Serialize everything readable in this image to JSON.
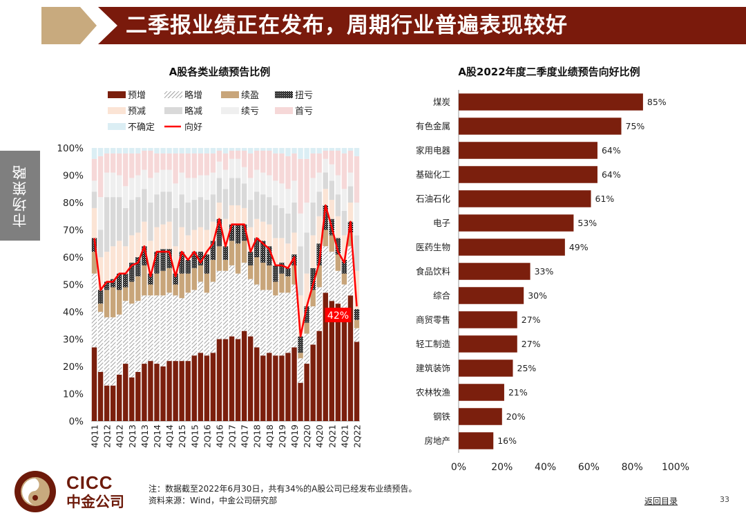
{
  "header": {
    "title": "二季报业绩正在发布，周期行业普遍表现较好"
  },
  "side_tab": {
    "label": "市场策略"
  },
  "footer": {
    "brand_en": "CICC",
    "brand_cn": "中金公司",
    "note": "注：数据截至2022年6月30日，共有34%的A股公司已经发布业绩预告。",
    "source": "资料来源：Wind，中金公司研究部",
    "back_link": "返回目录",
    "page_number": "33"
  },
  "colors": {
    "banner": "#7a1a0c",
    "banner_accent": "#c8aa7e",
    "bar_dark": "#7b1f0d",
    "line_red": "#ff0000",
    "side_tab": "#7f7f7f"
  },
  "chart_data": [
    {
      "type": "stacked_bar_line",
      "title": "A股各类业绩预告比例",
      "xlabel": "",
      "ylabel": "",
      "ylim": [
        0,
        100
      ],
      "y_ticks": [
        "0%",
        "10%",
        "20%",
        "30%",
        "40%",
        "50%",
        "60%",
        "70%",
        "80%",
        "90%",
        "100%"
      ],
      "categories": [
        "4Q11",
        "1Q12",
        "2Q12",
        "3Q12",
        "4Q12",
        "1Q13",
        "2Q13",
        "3Q13",
        "4Q13",
        "1Q14",
        "2Q14",
        "3Q14",
        "4Q14",
        "1Q15",
        "2Q15",
        "3Q15",
        "4Q15",
        "1Q16",
        "2Q16",
        "3Q16",
        "4Q16",
        "1Q17",
        "2Q17",
        "3Q17",
        "4Q17",
        "1Q18",
        "2Q18",
        "3Q18",
        "4Q18",
        "1Q19",
        "2Q19",
        "3Q19",
        "4Q19",
        "1Q20",
        "2Q20",
        "3Q20",
        "4Q20",
        "1Q21",
        "2Q21",
        "3Q21",
        "4Q21",
        "1Q22",
        "2Q22"
      ],
      "x_tick_labels": [
        "4Q11",
        "",
        "2Q12",
        "",
        "4Q12",
        "",
        "2Q13",
        "",
        "4Q13",
        "",
        "2Q14",
        "",
        "4Q14",
        "",
        "2Q15",
        "",
        "4Q15",
        "",
        "2Q16",
        "",
        "4Q16",
        "",
        "2Q17",
        "",
        "4Q17",
        "",
        "2Q18",
        "",
        "4Q18",
        "",
        "2Q19",
        "",
        "4Q19",
        "",
        "2Q20",
        "",
        "4Q20",
        "",
        "2Q21",
        "",
        "4Q21",
        "",
        "2Q22"
      ],
      "legend": [
        {
          "name": "预增",
          "color": "#7b1f0d",
          "pattern": "solid"
        },
        {
          "name": "略增",
          "color": "#8c8c8c",
          "pattern": "hatch"
        },
        {
          "name": "续盈",
          "color": "#c8a57a",
          "pattern": "solid"
        },
        {
          "name": "扭亏",
          "color": "#222222",
          "pattern": "dots"
        },
        {
          "name": "预减",
          "color": "#fbe4d5",
          "pattern": "solid"
        },
        {
          "name": "略减",
          "color": "#d9d9d9",
          "pattern": "solid"
        },
        {
          "name": "续亏",
          "color": "#efefef",
          "pattern": "solid"
        },
        {
          "name": "首亏",
          "color": "#f6d8d8",
          "pattern": "solid"
        },
        {
          "name": "不确定",
          "color": "#dbeef4",
          "pattern": "solid"
        },
        {
          "name": "向好",
          "color": "#ff0000",
          "pattern": "line"
        }
      ],
      "series": [
        {
          "name": "预增",
          "values": [
            27,
            18,
            13,
            13,
            17,
            21,
            16,
            18,
            21,
            22,
            21,
            20,
            22,
            22,
            22,
            22,
            24,
            25,
            24,
            25,
            30,
            30,
            31,
            30,
            33,
            31,
            27,
            24,
            25,
            24,
            24,
            25,
            27,
            14,
            21,
            28,
            33,
            47,
            44,
            43,
            38,
            46,
            29
          ]
        },
        {
          "name": "略增",
          "values": [
            27,
            22,
            25,
            25,
            22,
            23,
            27,
            26,
            25,
            24,
            25,
            26,
            25,
            24,
            23,
            25,
            24,
            26,
            23,
            26,
            25,
            25,
            26,
            24,
            25,
            21,
            23,
            24,
            23,
            22,
            23,
            22,
            23,
            9,
            11,
            14,
            16,
            17,
            18,
            12,
            12,
            18,
            5
          ]
        },
        {
          "name": "续盈",
          "values": [
            8,
            3,
            10,
            11,
            9,
            5,
            8,
            9,
            11,
            4,
            8,
            9,
            9,
            4,
            9,
            7,
            8,
            6,
            7,
            8,
            9,
            4,
            9,
            11,
            8,
            5,
            10,
            10,
            9,
            5,
            7,
            6,
            7,
            2,
            4,
            6,
            8,
            6,
            6,
            6,
            4,
            5,
            3
          ]
        },
        {
          "name": "扭亏",
          "values": [
            5,
            5,
            3,
            3,
            6,
            5,
            7,
            7,
            7,
            4,
            8,
            8,
            7,
            4,
            8,
            5,
            6,
            5,
            7,
            7,
            10,
            5,
            6,
            7,
            6,
            5,
            7,
            8,
            7,
            6,
            4,
            3,
            4,
            6,
            6,
            8,
            8,
            9,
            6,
            6,
            5,
            4,
            4
          ]
        },
        {
          "name": "预减",
          "values": [
            11,
            12,
            11,
            12,
            12,
            10,
            10,
            9,
            9,
            12,
            9,
            9,
            10,
            10,
            9,
            9,
            8,
            9,
            9,
            7,
            6,
            10,
            7,
            7,
            6,
            9,
            7,
            7,
            8,
            10,
            9,
            9,
            8,
            15,
            12,
            12,
            10,
            6,
            7,
            8,
            9,
            7,
            14
          ]
        },
        {
          "name": "略减",
          "values": [
            6,
            10,
            20,
            18,
            16,
            14,
            13,
            13,
            12,
            14,
            12,
            12,
            11,
            14,
            12,
            12,
            11,
            11,
            11,
            10,
            9,
            11,
            10,
            10,
            9,
            10,
            10,
            10,
            10,
            12,
            11,
            11,
            11,
            18,
            15,
            12,
            9,
            6,
            7,
            8,
            9,
            6,
            13
          ]
        },
        {
          "name": "续亏",
          "values": [
            4,
            12,
            9,
            9,
            8,
            8,
            8,
            8,
            7,
            9,
            8,
            8,
            8,
            9,
            8,
            9,
            8,
            8,
            9,
            8,
            6,
            7,
            7,
            7,
            6,
            8,
            8,
            8,
            8,
            9,
            9,
            9,
            8,
            12,
            11,
            9,
            7,
            5,
            6,
            7,
            8,
            5,
            12
          ]
        },
        {
          "name": "首亏",
          "values": [
            8,
            15,
            7,
            7,
            8,
            12,
            9,
            8,
            7,
            10,
            7,
            6,
            6,
            11,
            7,
            9,
            9,
            8,
            8,
            7,
            4,
            6,
            3,
            3,
            6,
            9,
            7,
            8,
            9,
            10,
            11,
            12,
            10,
            20,
            16,
            9,
            7,
            3,
            5,
            9,
            13,
            8,
            17
          ]
        },
        {
          "name": "不确定",
          "values": [
            4,
            3,
            2,
            2,
            2,
            2,
            2,
            2,
            1,
            1,
            2,
            2,
            2,
            2,
            2,
            2,
            2,
            2,
            2,
            2,
            1,
            2,
            1,
            1,
            1,
            2,
            1,
            1,
            1,
            2,
            2,
            3,
            2,
            4,
            4,
            2,
            2,
            1,
            1,
            1,
            2,
            1,
            3
          ]
        }
      ],
      "line_series": {
        "name": "向好",
        "values": [
          67,
          48,
          51,
          51,
          54,
          54,
          57,
          58,
          64,
          53,
          62,
          62,
          62,
          53,
          62,
          59,
          62,
          58,
          62,
          65,
          74,
          64,
          72,
          72,
          72,
          62,
          67,
          65,
          63,
          57,
          57,
          56,
          60,
          31,
          42,
          50,
          58,
          79,
          71,
          62,
          58,
          73,
          42
        ]
      },
      "callout": {
        "label": "42%",
        "category": "2Q22"
      }
    },
    {
      "type": "bar",
      "orientation": "horizontal",
      "title": "A股2022年度二季度业绩预告向好比例",
      "xlabel": "",
      "ylabel": "",
      "xlim": [
        0,
        100
      ],
      "x_ticks": [
        "0%",
        "20%",
        "40%",
        "60%",
        "80%",
        "100%"
      ],
      "categories": [
        "煤炭",
        "有色金属",
        "家用电器",
        "基础化工",
        "石油石化",
        "电子",
        "医药生物",
        "食品饮料",
        "综合",
        "商贸零售",
        "轻工制造",
        "建筑装饰",
        "农林牧渔",
        "钢铁",
        "房地产"
      ],
      "values": [
        85,
        75,
        64,
        64,
        61,
        53,
        49,
        33,
        30,
        27,
        27,
        25,
        21,
        20,
        16
      ],
      "value_labels": [
        "85%",
        "75%",
        "64%",
        "64%",
        "61%",
        "53%",
        "49%",
        "33%",
        "30%",
        "27%",
        "27%",
        "25%",
        "21%",
        "20%",
        "16%"
      ]
    }
  ]
}
